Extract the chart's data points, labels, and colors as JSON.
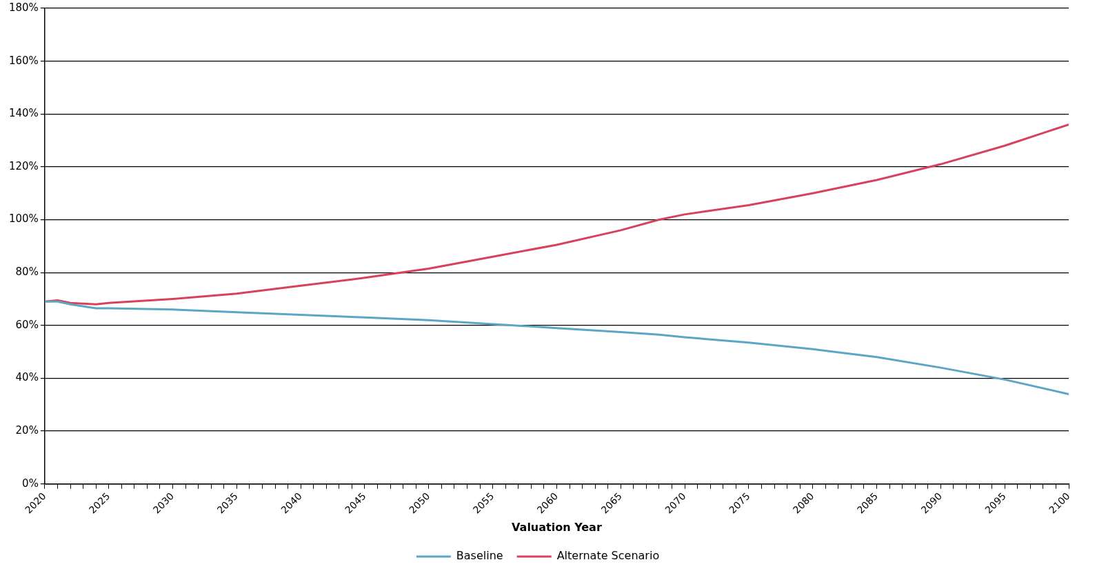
{
  "chart_data": {
    "type": "line",
    "xlabel": "Valuation Year",
    "x": [
      2020,
      2021,
      2022,
      2024,
      2025,
      2030,
      2035,
      2040,
      2045,
      2050,
      2055,
      2060,
      2065,
      2068,
      2070,
      2075,
      2080,
      2085,
      2090,
      2095,
      2100
    ],
    "series": [
      {
        "name": "Baseline",
        "color": "#5aa6c4",
        "values": [
          69,
          69,
          68,
          66.5,
          66.5,
          66,
          65,
          64,
          63,
          62,
          60.5,
          59,
          57.5,
          56.5,
          55.5,
          53.5,
          51,
          48,
          44,
          39.5,
          34
        ]
      },
      {
        "name": "Alternate Scenario",
        "color": "#d9415a",
        "values": [
          69,
          69.5,
          68.5,
          68,
          68.5,
          70,
          72,
          75,
          78,
          81.5,
          86,
          90.5,
          96,
          100,
          102,
          105.5,
          110,
          115,
          121,
          128,
          136
        ]
      }
    ],
    "xlim": [
      2020,
      2100
    ],
    "xticks": [
      2020,
      {
        "value": 2021,
        "label": null
      },
      {
        "value": 2022,
        "label": null
      },
      {
        "value": 2023,
        "label": null
      },
      {
        "value": 2024,
        "label": null
      },
      2025,
      {
        "value": 2026,
        "label": null
      },
      {
        "value": 2027,
        "label": null
      },
      {
        "value": 2028,
        "label": null
      },
      {
        "value": 2029,
        "label": null
      },
      2030,
      {
        "value": 2031,
        "label": null
      },
      {
        "value": 2032,
        "label": null
      },
      {
        "value": 2033,
        "label": null
      },
      {
        "value": 2034,
        "label": null
      },
      2035,
      {
        "value": 2036,
        "label": null
      },
      {
        "value": 2037,
        "label": null
      },
      {
        "value": 2038,
        "label": null
      },
      {
        "value": 2039,
        "label": null
      },
      2040,
      {
        "value": 2041,
        "label": null
      },
      {
        "value": 2042,
        "label": null
      },
      {
        "value": 2043,
        "label": null
      },
      {
        "value": 2044,
        "label": null
      },
      2045,
      {
        "value": 2046,
        "label": null
      },
      {
        "value": 2047,
        "label": null
      },
      {
        "value": 2048,
        "label": null
      },
      {
        "value": 2049,
        "label": null
      },
      2050,
      {
        "value": 2051,
        "label": null
      },
      {
        "value": 2052,
        "label": null
      },
      {
        "value": 2053,
        "label": null
      },
      {
        "value": 2054,
        "label": null
      },
      2055,
      {
        "value": 2056,
        "label": null
      },
      {
        "value": 2057,
        "label": null
      },
      {
        "value": 2058,
        "label": null
      },
      {
        "value": 2059,
        "label": null
      },
      2060,
      {
        "value": 2061,
        "label": null
      },
      {
        "value": 2062,
        "label": null
      },
      {
        "value": 2063,
        "label": null
      },
      {
        "value": 2064,
        "label": null
      },
      2065,
      {
        "value": 2066,
        "label": null
      },
      {
        "value": 2067,
        "label": null
      },
      {
        "value": 2068,
        "label": null
      },
      {
        "value": 2069,
        "label": null
      },
      2070,
      {
        "value": 2071,
        "label": null
      },
      {
        "value": 2072,
        "label": null
      },
      {
        "value": 2073,
        "label": null
      },
      {
        "value": 2074,
        "label": null
      },
      2075,
      {
        "value": 2076,
        "label": null
      },
      {
        "value": 2077,
        "label": null
      },
      {
        "value": 2078,
        "label": null
      },
      {
        "value": 2079,
        "label": null
      },
      2080,
      {
        "value": 2081,
        "label": null
      },
      {
        "value": 2082,
        "label": null
      },
      {
        "value": 2083,
        "label": null
      },
      {
        "value": 2084,
        "label": null
      },
      2085,
      {
        "value": 2086,
        "label": null
      },
      {
        "value": 2087,
        "label": null
      },
      {
        "value": 2088,
        "label": null
      },
      {
        "value": 2089,
        "label": null
      },
      2090,
      {
        "value": 2091,
        "label": null
      },
      {
        "value": 2092,
        "label": null
      },
      {
        "value": 2093,
        "label": null
      },
      {
        "value": 2094,
        "label": null
      },
      2095,
      {
        "value": 2096,
        "label": null
      },
      {
        "value": 2097,
        "label": null
      },
      {
        "value": 2098,
        "label": null
      },
      {
        "value": 2099,
        "label": null
      },
      2100
    ],
    "ylim": [
      0,
      180
    ],
    "yticks": [
      {
        "value": 0,
        "label": "0%"
      },
      {
        "value": 20,
        "label": "20%"
      },
      {
        "value": 40,
        "label": "40%"
      },
      {
        "value": 60,
        "label": "60%"
      },
      {
        "value": 80,
        "label": "80%"
      },
      {
        "value": 100,
        "label": "100%"
      },
      {
        "value": 120,
        "label": "120%"
      },
      {
        "value": 140,
        "label": "140%"
      },
      {
        "value": 160,
        "label": "160%"
      },
      {
        "value": 180,
        "label": "180%"
      }
    ],
    "grid": "y",
    "legend": "bottom",
    "marker": "none",
    "line_style": "solid"
  }
}
